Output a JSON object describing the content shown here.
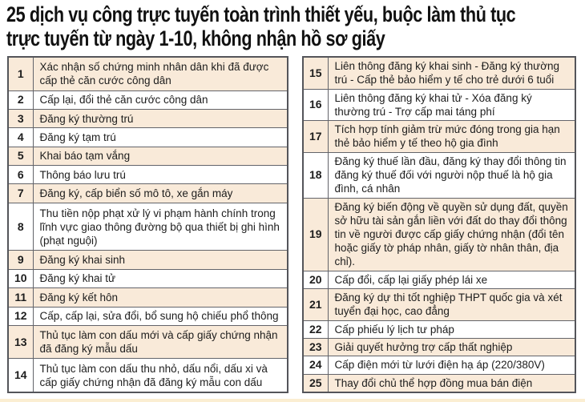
{
  "title": {
    "lines": [
      "25 dịch vụ công trực tuyến toàn trình thiết yếu, buộc làm thủ tục",
      "trực tuyến từ ngày 1-10, không nhận hồ sơ giấy"
    ]
  },
  "colors": {
    "row_alt": "#f9ead9",
    "row_base": "#ffffff",
    "border": "#54555a",
    "title": "#111111",
    "strip": "#fbeed2"
  },
  "tables": [
    {
      "name": "services-1-14",
      "rows": [
        {
          "no": "1",
          "text": "Xác nhận số chứng minh nhân dân khi đã được cấp thẻ căn cước công dân"
        },
        {
          "no": "2",
          "text": "Cấp lại, đổi thẻ căn cước công dân"
        },
        {
          "no": "3",
          "text": "Đăng ký thường trú"
        },
        {
          "no": "4",
          "text": "Đăng ký tạm trú"
        },
        {
          "no": "5",
          "text": "Khai báo tạm vắng"
        },
        {
          "no": "6",
          "text": "Thông báo lưu trú"
        },
        {
          "no": "7",
          "text": "Đăng ký, cấp biển số mô tô, xe gắn máy"
        },
        {
          "no": "8",
          "text": "Thu tiền nộp phạt xử lý vi phạm hành chính trong lĩnh vực giao thông đường bộ qua thiết bị ghi hình (phạt nguội)"
        },
        {
          "no": "9",
          "text": "Đăng ký khai sinh"
        },
        {
          "no": "10",
          "text": "Đăng ký khai tử"
        },
        {
          "no": "11",
          "text": "Đăng ký kết hôn"
        },
        {
          "no": "12",
          "text": "Cấp, cấp lại, sửa đổi, bổ sung hộ chiếu phổ thông"
        },
        {
          "no": "13",
          "text": "Thủ tục làm con dấu mới và cấp giấy chứng nhận đã đăng ký mẫu dấu"
        },
        {
          "no": "14",
          "text": "Thủ tục làm con dấu thu nhỏ, dấu nổi, dấu xi và cấp giấy chứng nhận đã đăng ký mẫu con dấu"
        }
      ]
    },
    {
      "name": "services-15-25",
      "rows": [
        {
          "no": "15",
          "text": "Liên thông đăng ký khai sinh - Đăng ký thường trú - Cấp thẻ bảo hiểm y tế cho trẻ dưới 6 tuổi"
        },
        {
          "no": "16",
          "text": "Liên thông đăng ký khai tử - Xóa đăng ký thường trú - Trợ cấp mai táng phí"
        },
        {
          "no": "17",
          "text": "Tích hợp tính giảm trừ mức đóng trong gia hạn thẻ bảo hiểm y tế theo hộ gia đình"
        },
        {
          "no": "18",
          "text": "Đăng ký thuế lần đầu, đăng ký thay đổi thông tin đăng ký thuế đối với người nộp thuế là hộ gia đình, cá nhân"
        },
        {
          "no": "19",
          "text": "Đăng ký biến động về quyền sử dụng đất, quyền sở hữu tài sản gắn liền với đất do thay đổi thông tin về người được cấp giấy chứng nhận (đổi tên hoặc giấy tờ pháp nhân, giấy tờ nhân thân, địa chỉ)."
        },
        {
          "no": "20",
          "text": "Cấp đổi, cấp lại giấy phép lái xe"
        },
        {
          "no": "21",
          "text": "Đăng ký dự thi tốt nghiệp THPT quốc gia và xét tuyển đại học, cao đẳng"
        },
        {
          "no": "22",
          "text": "Cấp phiếu lý lịch tư pháp"
        },
        {
          "no": "23",
          "text": "Giải quyết hưởng trợ cấp thất nghiệp"
        },
        {
          "no": "24",
          "text": "Cấp điện mới từ lưới điện hạ áp (220/380V)"
        },
        {
          "no": "25",
          "text": "Thay đổi chủ thể hợp đồng mua bán điện"
        }
      ]
    }
  ]
}
